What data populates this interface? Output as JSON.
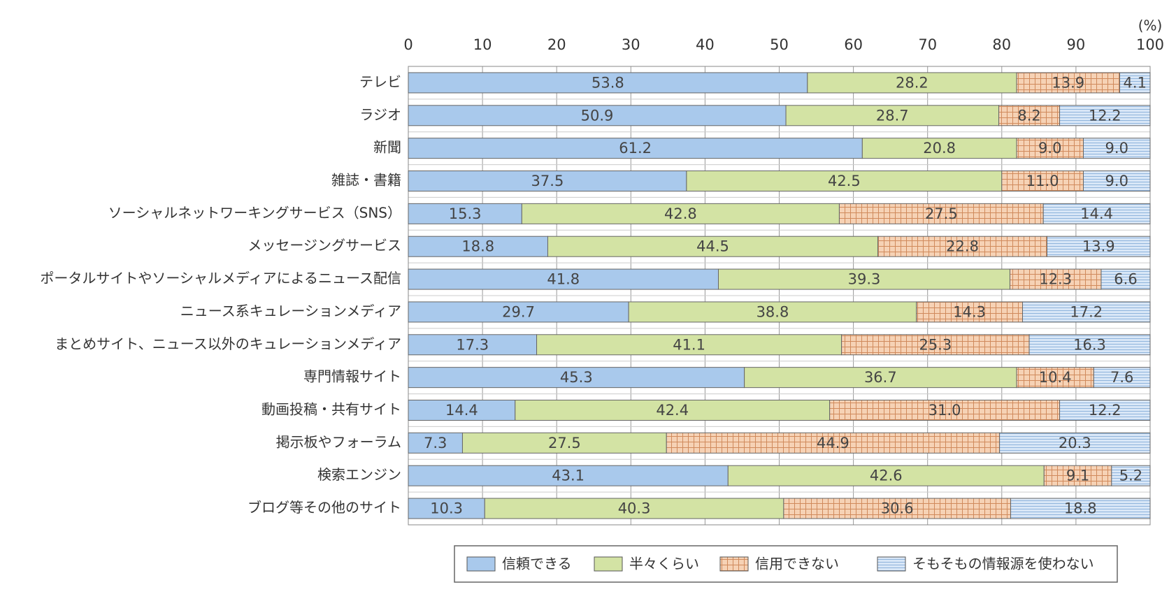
{
  "chart_data": {
    "type": "stacked-barh",
    "unit": "(%)",
    "categories": [
      "テレビ",
      "ラジオ",
      "新聞",
      "雑誌・書籍",
      "ソーシャルネットワーキングサービス（SNS）",
      "メッセージングサービス",
      "ポータルサイトやソーシャルメディアによるニュース配信",
      "ニュース系キュレーションメディア",
      "まとめサイト、ニュース以外のキュレーションメディア",
      "専門情報サイト",
      "動画投稿・共有サイト",
      "掲示板やフォーラム",
      "検索エンジン",
      "ブログ等その他のサイト"
    ],
    "series": [
      {
        "name": "信頼できる",
        "color": "#a9c9ec",
        "values": [
          53.8,
          50.9,
          61.2,
          37.5,
          15.3,
          18.8,
          41.8,
          29.7,
          17.3,
          45.3,
          14.4,
          7.3,
          43.1,
          10.3
        ],
        "value_labels": [
          "53.8",
          "50.9",
          "61.2",
          "37.5",
          "15.3",
          "18.8",
          "41.8",
          "29.7",
          "17.3",
          "45.3",
          "14.4",
          "7.3",
          "43.1",
          "10.3"
        ]
      },
      {
        "name": "半々くらい",
        "color": "#d3e3a4",
        "values": [
          28.2,
          28.7,
          20.8,
          42.5,
          42.8,
          44.5,
          39.3,
          38.8,
          41.1,
          36.7,
          42.4,
          27.5,
          42.6,
          40.3
        ],
        "value_labels": [
          "28.2",
          "28.7",
          "20.8",
          "42.5",
          "42.8",
          "44.5",
          "39.3",
          "38.8",
          "41.1",
          "36.7",
          "42.4",
          "27.5",
          "42.6",
          "40.3"
        ]
      },
      {
        "name": "信用できない",
        "color": "#f6d2b5",
        "hatch": "grid",
        "values": [
          13.9,
          8.2,
          9.0,
          11.0,
          27.5,
          22.8,
          12.3,
          14.3,
          25.3,
          10.4,
          31.0,
          44.9,
          9.1,
          30.6
        ],
        "value_labels": [
          "13.9",
          "8.2",
          "9.0",
          "11.0",
          "27.5",
          "22.8",
          "12.3",
          "14.3",
          "25.3",
          "10.4",
          "31.0",
          "44.9",
          "9.1",
          "30.6"
        ]
      },
      {
        "name": "そもそもの情報源を使わない",
        "color": "#d9e7f7",
        "hatch": "hlines",
        "values": [
          4.1,
          12.2,
          9.0,
          9.0,
          14.4,
          13.9,
          6.6,
          17.2,
          16.3,
          7.6,
          12.2,
          20.3,
          5.2,
          18.8
        ],
        "value_labels": [
          "4.1",
          "12.2",
          "9.0",
          "9.0",
          "14.4",
          "13.9",
          "6.6",
          "17.2",
          "16.3",
          "7.6",
          "12.2",
          "20.3",
          "5.2",
          "18.8"
        ]
      }
    ],
    "xlim": [
      0,
      100
    ],
    "xticks": [
      0,
      10,
      20,
      30,
      40,
      50,
      60,
      70,
      80,
      90,
      100
    ],
    "grid": true
  }
}
